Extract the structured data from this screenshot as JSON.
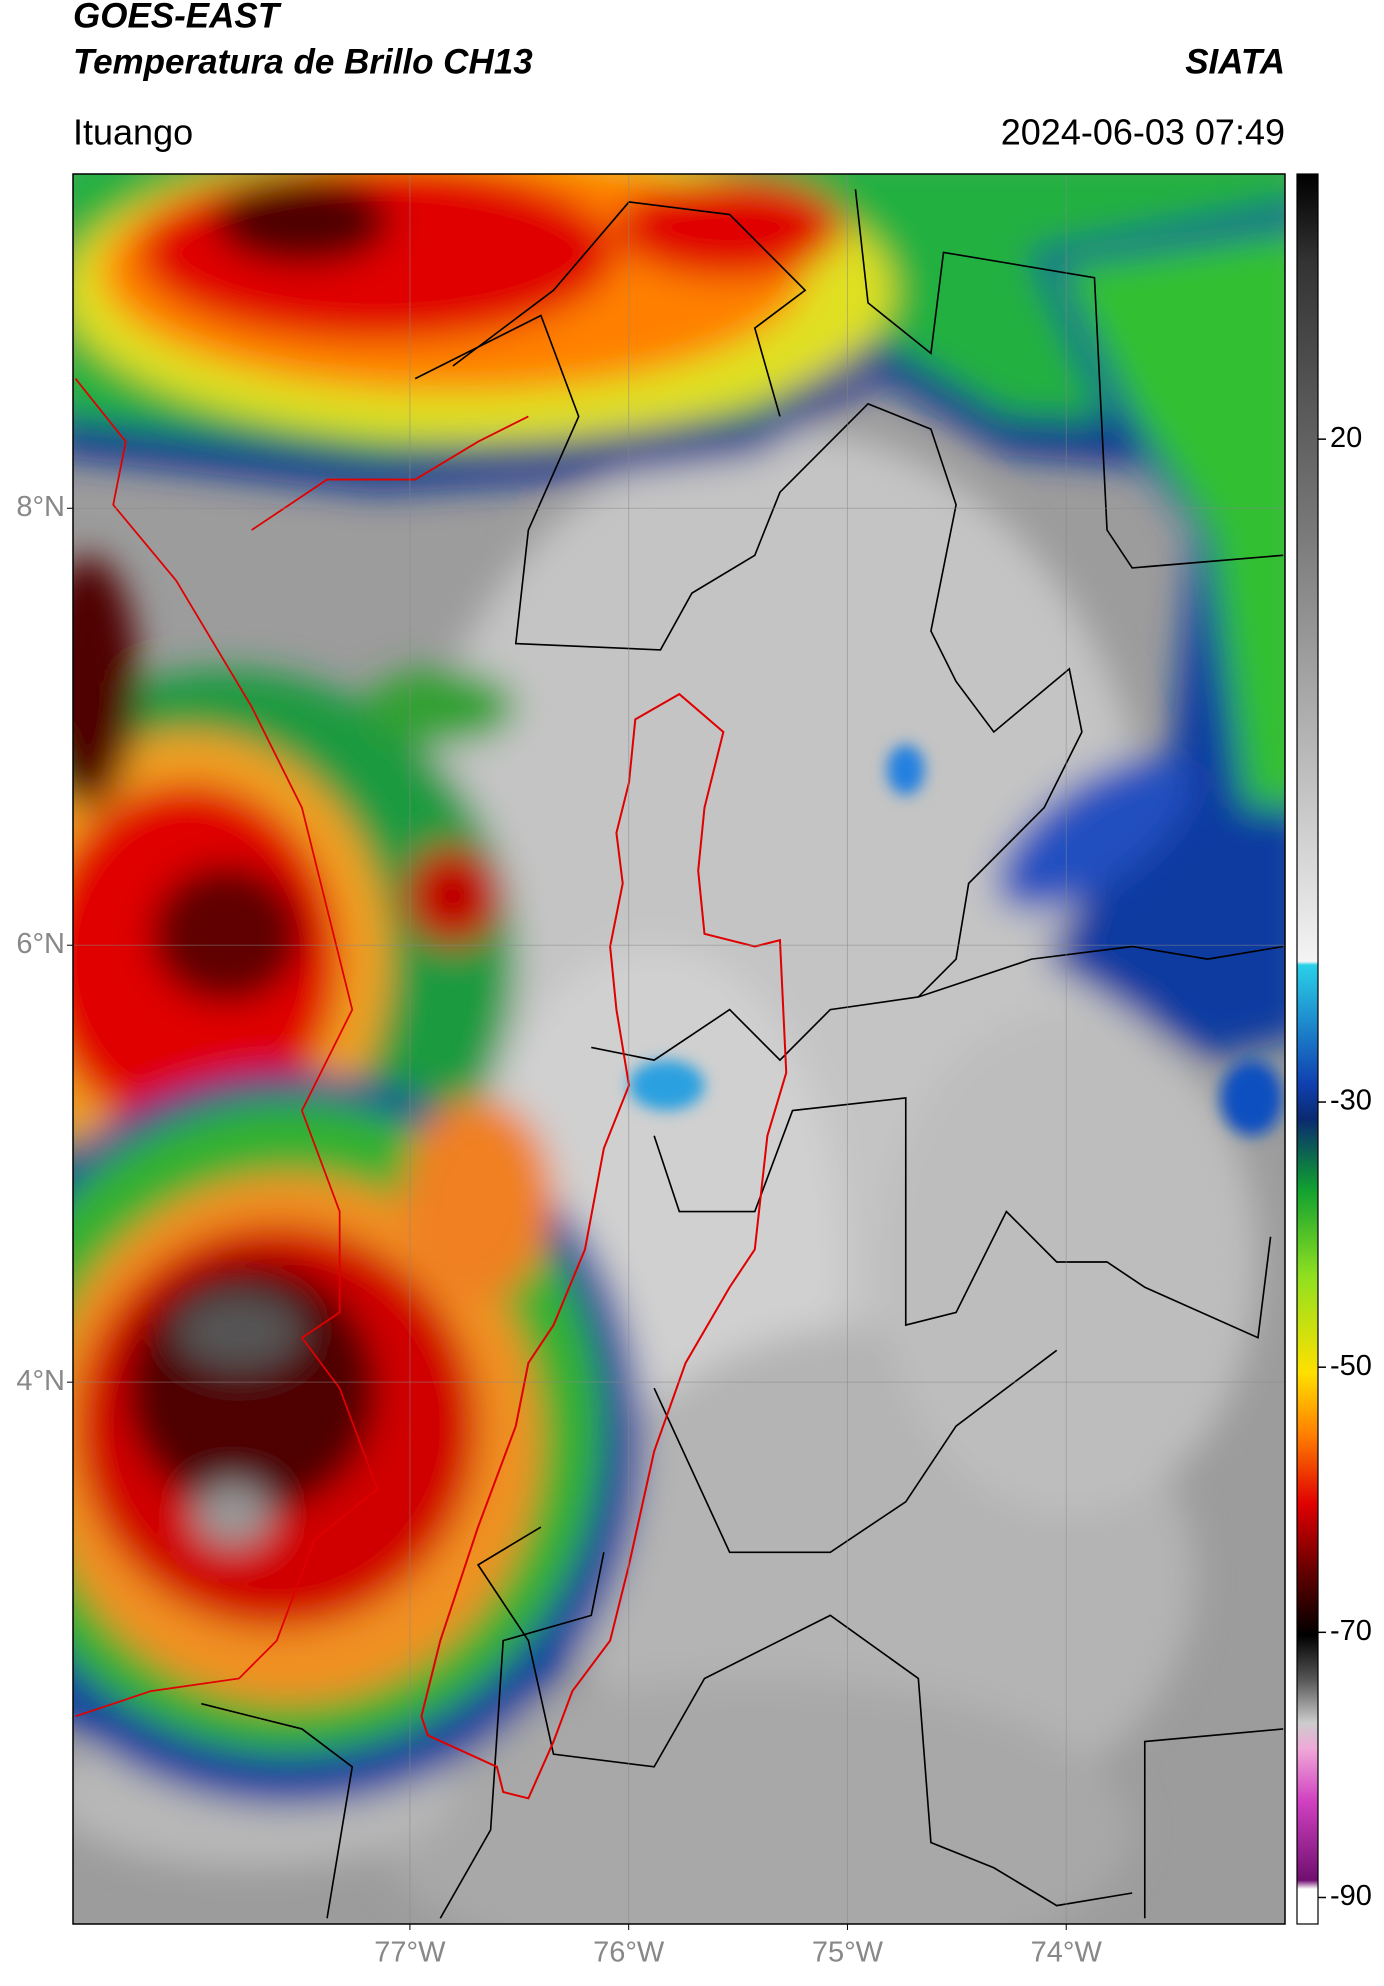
{
  "header": {
    "source": "GOES-EAST",
    "product": "Temperatura de Brillo CH13",
    "organization": "SIATA",
    "location": "Ituango",
    "datetime": "2024-06-03 07:49"
  },
  "map": {
    "lon_range": [
      -78.54,
      -73.0
    ],
    "lat_range": [
      1.52,
      9.53
    ],
    "lat_ticks": [
      {
        "value": 8,
        "label": "8°N"
      },
      {
        "value": 6,
        "label": "6°N"
      },
      {
        "value": 4,
        "label": "4°N"
      }
    ],
    "lon_ticks": [
      {
        "value": -77,
        "label": "77°W"
      },
      {
        "value": -76,
        "label": "76°W"
      },
      {
        "value": -75,
        "label": "75°W"
      },
      {
        "value": -74,
        "label": "74°W"
      }
    ]
  },
  "colorbar": {
    "range": [
      -92,
      40
    ],
    "ticks": [
      20,
      -30,
      -50,
      -70,
      -90
    ]
  }
}
